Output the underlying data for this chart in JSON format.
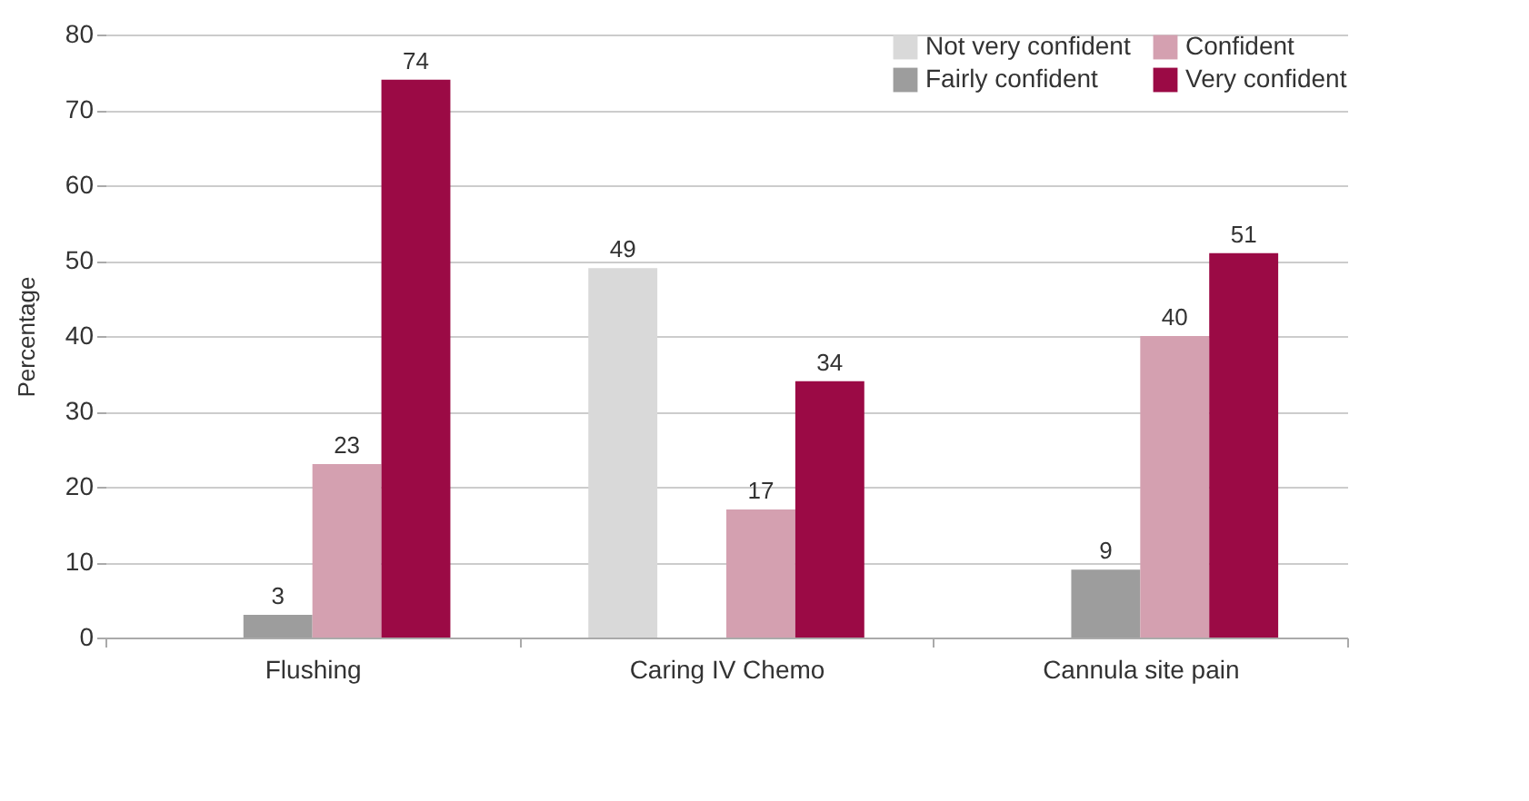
{
  "chart_data": {
    "type": "bar",
    "ylabel": "Percentage",
    "categories": [
      "Flushing",
      "Caring IV Chemo",
      "Cannula site pain"
    ],
    "series": [
      {
        "name": "Not very confident",
        "color": "#d9d9d9",
        "values": [
          null,
          49,
          null
        ]
      },
      {
        "name": "Fairly confident",
        "color": "#9d9d9d",
        "values": [
          3,
          null,
          9
        ]
      },
      {
        "name": "Confident",
        "color": "#d4a0b0",
        "values": [
          23,
          17,
          40
        ]
      },
      {
        "name": "Very confident",
        "color": "#9b0a45",
        "values": [
          74,
          34,
          51
        ]
      }
    ],
    "ylim": [
      0,
      80
    ],
    "yticks": [
      0,
      10,
      20,
      30,
      40,
      50,
      60,
      70,
      80
    ],
    "grid": "y",
    "legend": "top right",
    "data_labels": true
  }
}
